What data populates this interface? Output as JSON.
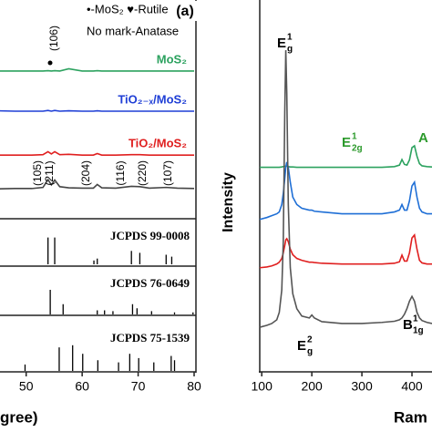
{
  "chart_data": [
    {
      "type": "line",
      "label": "(a)",
      "legend_lines": [
        "•-MoS₂ ♥-Rutile",
        "No mark-Anatase"
      ],
      "xlabel": "gree)",
      "xlim": [
        45,
        80
      ],
      "xticks": [
        50,
        60,
        70,
        80
      ],
      "ylim": [
        0,
        100
      ],
      "x": [
        45,
        48,
        51,
        53,
        53.9,
        54.5,
        55.1,
        56,
        57.6,
        60,
        62,
        62.7,
        63.5,
        66,
        68.8,
        70.3,
        72,
        75,
        77,
        80
      ],
      "series": [
        {
          "name": "MoS₂",
          "color": "#2ca25f",
          "values": [
            80.9,
            80.9,
            80.9,
            80.9,
            81,
            80.9,
            81,
            80.9,
            81.5,
            80.9,
            80.9,
            81,
            80.9,
            80.9,
            80.9,
            80.9,
            80.9,
            80.9,
            80.9,
            80.9
          ]
        },
        {
          "name": "TiO₂₋ₓ/MoS₂",
          "color": "#1f3fd6",
          "values": [
            70.2,
            70.1,
            70.1,
            70.1,
            70.3,
            70.1,
            70.3,
            70.1,
            70.2,
            70.1,
            70.1,
            70.2,
            70.1,
            70.1,
            70.1,
            70.1,
            70.1,
            70.1,
            70.1,
            70.1
          ]
        },
        {
          "name": "TiO₂/MoS₂",
          "color": "#e02020",
          "values": [
            58.3,
            58.3,
            58.3,
            58.4,
            59.2,
            58.6,
            59.2,
            58.4,
            58.5,
            58.3,
            58.3,
            58.7,
            58.3,
            58.3,
            58.4,
            58.4,
            58.3,
            58.3,
            58.3,
            58.3
          ]
        },
        {
          "color": "#444444",
          "values": [
            49.2,
            49.3,
            49.3,
            49.6,
            51.7,
            50.3,
            51.6,
            49.8,
            49.5,
            49.4,
            49.4,
            50.4,
            49.5,
            49.4,
            49.9,
            49.8,
            49.4,
            49.6,
            49.4,
            49.3
          ]
        }
      ],
      "annotations": [
        "(106)",
        "(105)",
        "(211)",
        "(204)",
        "(116)",
        "(220)",
        "(107)"
      ]
    },
    {
      "type": "stick",
      "name": "JCPDS 99-0008",
      "color": "#000000",
      "xlim": [
        45,
        80
      ],
      "ylim": [
        0,
        100
      ],
      "x": [
        53.9,
        55.1,
        62.1,
        62.7,
        68.8,
        70.3,
        75.0,
        76.0
      ],
      "values": [
        70,
        70,
        10,
        15,
        35,
        30,
        25,
        20
      ]
    },
    {
      "type": "stick",
      "name": "JCPDS 76-0649",
      "color": "#000000",
      "xlim": [
        45,
        80
      ],
      "ylim": [
        0,
        100
      ],
      "x": [
        54.3,
        56.6,
        62.7,
        64.0,
        65.5,
        69.0,
        69.8,
        72.4,
        76.5,
        79.8
      ],
      "values": [
        60,
        25,
        10,
        10,
        8,
        25,
        15,
        8,
        5,
        5
      ]
    },
    {
      "type": "stick",
      "name": "JCPDS 75-1539",
      "color": "#000000",
      "xlim": [
        45,
        80
      ],
      "ylim": [
        0,
        100
      ],
      "x": [
        49.8,
        55.9,
        58.3,
        60.1,
        62.8,
        66.5,
        68.5,
        70.1,
        72.8,
        75.9,
        76.5
      ],
      "values": [
        15,
        55,
        60,
        40,
        25,
        20,
        40,
        30,
        20,
        35,
        25
      ]
    },
    {
      "type": "line",
      "ylabel": "Intensity",
      "xlabel": "Ram",
      "xlim": [
        96,
        440
      ],
      "xticks": [
        100,
        200,
        300,
        400
      ],
      "ylim": [
        0,
        100
      ],
      "x": [
        96,
        110,
        120,
        130,
        135,
        140,
        143,
        146,
        148,
        150,
        153,
        157,
        162,
        170,
        180,
        195,
        200,
        205,
        220,
        260,
        300,
        340,
        365,
        375,
        380,
        385,
        390,
        395,
        400,
        405,
        410,
        415,
        420,
        430,
        440
      ],
      "series": [
        {
          "color": "#2ca25f",
          "values": [
            55,
            55,
            55,
            55,
            55,
            55.1,
            55.2,
            55.3,
            55.3,
            55.3,
            55.2,
            55.1,
            55.1,
            55,
            55,
            55,
            55,
            55,
            55,
            55,
            55,
            55,
            55.2,
            55.6,
            57.1,
            55.8,
            55.6,
            57,
            60.3,
            60.8,
            58,
            56,
            55.4,
            55.2,
            55.1
          ]
        },
        {
          "color": "#1f6fd6",
          "values": [
            41,
            41.5,
            42,
            42.5,
            43,
            45,
            48,
            52,
            55,
            56.4,
            55,
            51,
            47,
            45,
            44,
            43.5,
            43.5,
            43.2,
            43,
            42.5,
            42.5,
            42.5,
            43,
            43.5,
            45,
            43.5,
            43.5,
            46,
            50,
            51,
            47,
            44,
            43,
            42.5,
            42.5
          ]
        },
        {
          "color": "#e02020",
          "values": [
            28,
            28.2,
            28.5,
            29,
            29.5,
            30.5,
            32,
            34,
            35.5,
            35.8,
            35,
            33,
            31.5,
            30.5,
            30,
            29.5,
            29.5,
            29.4,
            29.2,
            29,
            29,
            29,
            29.2,
            29.6,
            31.4,
            29.8,
            29.8,
            32,
            36,
            36.8,
            33,
            30,
            29.3,
            29,
            29
          ]
        },
        {
          "color": "#555555",
          "values": [
            12,
            12.5,
            13,
            14,
            16,
            22,
            35,
            70,
            86.5,
            75,
            45,
            28,
            21,
            17,
            15,
            14.5,
            15.3,
            14.5,
            13.5,
            13,
            13,
            13.3,
            13.6,
            14,
            14.5,
            15.5,
            17,
            19,
            20.3,
            19,
            16,
            14.5,
            13.8,
            13.3,
            13
          ]
        }
      ],
      "annotations": [
        {
          "base": "E",
          "sup": "1",
          "sub": "g",
          "color": "#000000"
        },
        {
          "base": "E",
          "sup": "1",
          "sub": "2g",
          "color": "#2c9a2c"
        },
        {
          "base": "A",
          "color": "#2c9a2c"
        },
        {
          "base": "E",
          "sup": "2",
          "sub": "g",
          "color": "#000000"
        },
        {
          "base": "B",
          "sup": "1",
          "sub": "1g",
          "color": "#000000"
        }
      ]
    }
  ]
}
